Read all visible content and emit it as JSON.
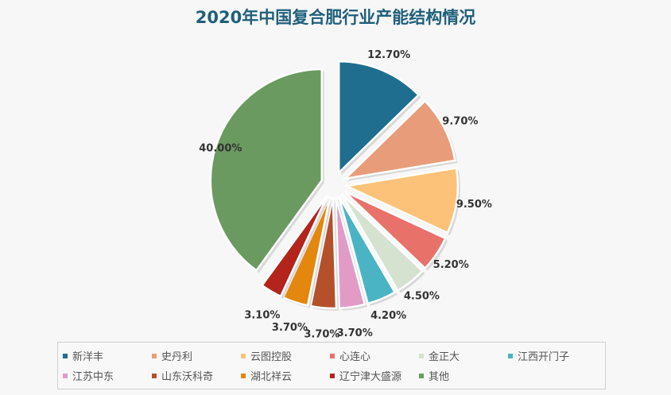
{
  "chart_data": {
    "type": "pie",
    "title": "2020年中国复合肥行业产能结构情况",
    "categories": [
      "新洋丰",
      "史丹利",
      "云图控股",
      "心连心",
      "金正大",
      "江西开门子",
      "江苏中东",
      "山东沃科奇",
      "湖北祥云",
      "辽宁津大盛源",
      "其他"
    ],
    "values": [
      12.7,
      9.7,
      9.5,
      5.2,
      4.5,
      4.2,
      3.7,
      3.7,
      3.7,
      3.1,
      40.0
    ],
    "labels": [
      "12.70%",
      "9.70%",
      "9.50%",
      "5.20%",
      "4.50%",
      "4.20%",
      "3.70%",
      "3.70%",
      "3.70%",
      "3.10%",
      "40.00%"
    ],
    "colors": [
      "#1f6e8f",
      "#e89c7a",
      "#fdc27a",
      "#e8716a",
      "#d4e2cf",
      "#4ab4c4",
      "#e29ac6",
      "#b4502a",
      "#e3870f",
      "#b3241c",
      "#6b9a61"
    ],
    "legend_position": "bottom",
    "exploded": true
  }
}
